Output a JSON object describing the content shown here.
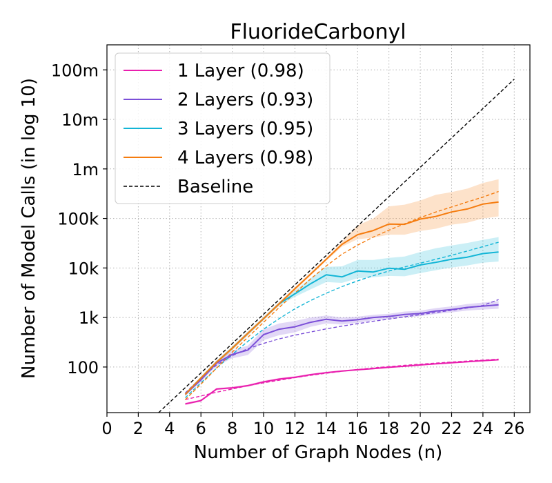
{
  "chart_data": {
    "type": "line",
    "title": "FluorideCarbonyl",
    "xlabel": "Number of Graph Nodes (n)",
    "ylabel": "Number of Model Calls (in log 10)",
    "y_scale": "log10",
    "xlim": [
      0,
      27
    ],
    "ylim": [
      12,
      320000000
    ],
    "xticks": [
      0,
      2,
      4,
      6,
      8,
      10,
      12,
      14,
      16,
      18,
      20,
      22,
      24,
      26
    ],
    "yticks": [
      {
        "value": 100,
        "label": "100"
      },
      {
        "value": 1000,
        "label": "1k"
      },
      {
        "value": 10000,
        "label": "10k"
      },
      {
        "value": 100000,
        "label": "100k"
      },
      {
        "value": 1000000,
        "label": "1m"
      },
      {
        "value": 10000000,
        "label": "10m"
      },
      {
        "value": 100000000,
        "label": "100m"
      }
    ],
    "grid": true,
    "legend_position": "top-left",
    "x": [
      5,
      6,
      7,
      8,
      9,
      10,
      11,
      12,
      13,
      14,
      15,
      16,
      17,
      18,
      19,
      20,
      21,
      22,
      23,
      24,
      25
    ],
    "series": [
      {
        "name": "1 Layer (0.98)",
        "color": "#e91eae",
        "values": [
          18,
          21,
          36,
          38,
          42,
          50,
          57,
          62,
          70,
          77,
          83,
          88,
          93,
          99,
          104,
          110,
          116,
          122,
          128,
          134,
          140
        ],
        "lower": [
          17,
          20,
          34,
          36,
          40,
          47,
          54,
          59,
          67,
          74,
          80,
          85,
          90,
          95,
          100,
          106,
          112,
          118,
          124,
          130,
          136
        ],
        "upper": [
          19,
          22,
          38,
          40,
          44,
          53,
          60,
          65,
          73,
          80,
          86,
          91,
          96,
          103,
          108,
          114,
          120,
          126,
          132,
          138,
          145
        ],
        "fit": [
          22,
          26,
          31,
          36,
          42,
          48,
          54,
          61,
          68,
          75,
          82,
          89,
          96,
          102,
          108,
          114,
          120,
          126,
          132,
          138,
          144
        ]
      },
      {
        "name": "2 Layers (0.93)",
        "color": "#7b4fd8",
        "values": [
          28,
          55,
          120,
          180,
          220,
          450,
          580,
          650,
          800,
          920,
          850,
          900,
          1000,
          1050,
          1150,
          1200,
          1350,
          1450,
          1600,
          1700,
          1800
        ],
        "lower": [
          26,
          50,
          105,
          150,
          175,
          350,
          440,
          500,
          650,
          760,
          720,
          780,
          880,
          930,
          1010,
          1060,
          1180,
          1270,
          1380,
          1450,
          1500
        ],
        "upper": [
          30,
          60,
          135,
          215,
          270,
          580,
          760,
          850,
          1000,
          1100,
          1000,
          1040,
          1130,
          1190,
          1320,
          1380,
          1550,
          1680,
          1870,
          2000,
          2150
        ],
        "fit": [
          30,
          60,
          110,
          170,
          235,
          300,
          370,
          440,
          510,
          590,
          670,
          750,
          840,
          930,
          1030,
          1140,
          1260,
          1400,
          1560,
          1750,
          2300
        ]
      },
      {
        "name": "3 Layers (0.95)",
        "color": "#12b5d6",
        "values": [
          28,
          60,
          125,
          240,
          480,
          950,
          1900,
          3000,
          4800,
          7300,
          6600,
          8700,
          8300,
          9900,
          9400,
          11500,
          13000,
          15000,
          16500,
          19500,
          21000
        ],
        "lower": [
          26,
          56,
          115,
          220,
          440,
          880,
          1750,
          2600,
          3700,
          5200,
          5000,
          6200,
          6500,
          6900,
          6800,
          7900,
          9000,
          10200,
          11200,
          12800,
          13500
        ],
        "upper": [
          30,
          64,
          135,
          260,
          520,
          1020,
          2050,
          3500,
          6200,
          10500,
          10800,
          14500,
          14500,
          16000,
          17000,
          21000,
          25000,
          28500,
          32000,
          37000,
          42000
        ],
        "fit": [
          24,
          48,
          95,
          180,
          330,
          580,
          950,
          1500,
          2200,
          3100,
          4200,
          5500,
          7000,
          8700,
          10500,
          12500,
          15000,
          18000,
          22000,
          27000,
          33000
        ]
      },
      {
        "name": "4 Layers (0.98)",
        "color": "#f57c0f",
        "values": [
          28,
          60,
          125,
          240,
          480,
          950,
          1900,
          3800,
          7500,
          15000,
          30000,
          47000,
          57000,
          77000,
          76000,
          97000,
          110000,
          135000,
          155000,
          195000,
          215000
        ],
        "lower": [
          26,
          56,
          115,
          220,
          440,
          880,
          1750,
          3500,
          7000,
          14000,
          27000,
          38000,
          41000,
          47000,
          47000,
          56000,
          62000,
          75000,
          82000,
          100000,
          110000
        ],
        "upper": [
          30,
          64,
          135,
          260,
          520,
          1020,
          2050,
          4100,
          8100,
          16000,
          34000,
          72000,
          100000,
          175000,
          190000,
          230000,
          300000,
          340000,
          400000,
          520000,
          620000
        ],
        "fit": [
          22,
          45,
          95,
          200,
          400,
          800,
          1600,
          3100,
          6000,
          11000,
          19000,
          29000,
          42000,
          58000,
          78000,
          104000,
          135000,
          170000,
          215000,
          270000,
          350000
        ]
      }
    ],
    "baseline": {
      "name": "Baseline",
      "color": "#000000",
      "style": "dashed",
      "x": [
        3.3,
        26
      ],
      "values": [
        12,
        65000000
      ]
    }
  }
}
